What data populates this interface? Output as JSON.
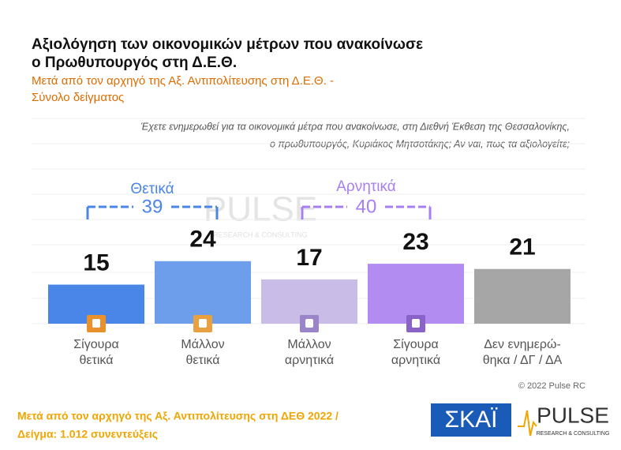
{
  "chart_data": {
    "type": "bar",
    "title": [
      "Αξιολόγηση των οικονομικών μέτρων που ανακοίνωσε",
      "ο Πρωθυπουργός στη Δ.Ε.Θ."
    ],
    "subtitle": [
      "Μετά από τον αρχηγό της Αξ. Αντιπολίτευσης στη Δ.Ε.Θ. -",
      "Σύνολο δείγματος"
    ],
    "question": [
      "Έχετε ενημερωθεί για τα οικονομικά μέτρα που ανακοίνωσε, στη Διεθνή Έκθεση της Θεσσαλονίκης,",
      "ο πρωθυπουργός, Κυριάκος Μητσοτάκης; Αν ναι, πως τα αξιολογείτε;"
    ],
    "categories": [
      [
        "Σίγουρα",
        "θετικά"
      ],
      [
        "Μάλλον",
        "θετικά"
      ],
      [
        "Μάλλον",
        "αρνητικά"
      ],
      [
        "Σίγουρα",
        "αρνητικά"
      ],
      [
        "Δεν ενημερώ-",
        "θηκα / ΔΓ / ΔΑ"
      ]
    ],
    "values": [
      15,
      24,
      17,
      23,
      21
    ],
    "colors": [
      "#4a86e8",
      "#6d9eeb",
      "#c9bde8",
      "#b28cf0",
      "#a6a6a6"
    ],
    "groups": [
      {
        "label": "Θετικά",
        "value": 39,
        "color": "#4a86e8"
      },
      {
        "label": "Αρνητικά",
        "value": 40,
        "color": "#a77ff0"
      }
    ],
    "copyright": "© 2022 Pulse RC",
    "footer": [
      "Μετά από τον αρχηγό της Αξ. Αντιπολίτευσης στη ΔΕΘ  2022  /",
      "Δείγμα:  1.012 συνεντεύξεις"
    ],
    "logos": {
      "skai": "ΣΚΑΪ",
      "pulse": "PULSE",
      "pulse_sub": "RESEARCH & CONSULTING"
    }
  }
}
